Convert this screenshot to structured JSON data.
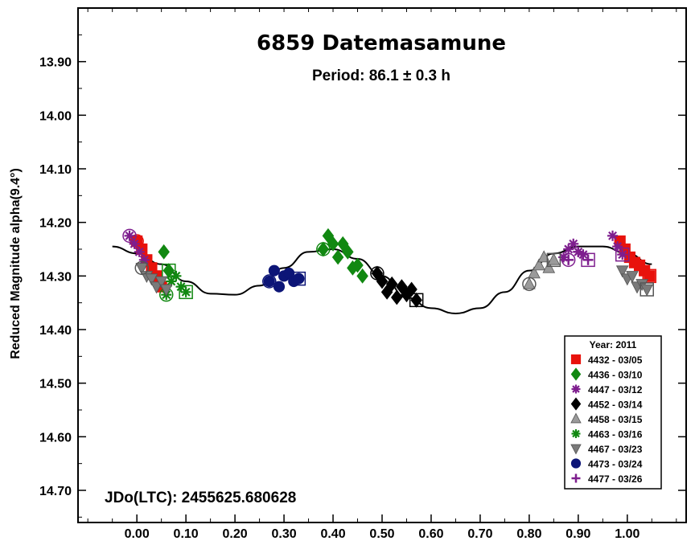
{
  "chart_data": {
    "type": "scatter",
    "title": "6859 Datemasamune",
    "subtitle": "Period: 86.1 ± 0.3 h",
    "xlabel": "",
    "ylabel": "Reduced Magnitude alpha(9.4°)",
    "annotation": "JDo(LTC): 2455625.680628",
    "xlim": [
      -0.12,
      1.12
    ],
    "ylim": [
      13.8,
      14.76
    ],
    "y_inverted": true,
    "x_ticks": [
      "0.00",
      "0.10",
      "0.20",
      "0.30",
      "0.40",
      "0.50",
      "0.60",
      "0.70",
      "0.80",
      "0.90",
      "1.00"
    ],
    "y_ticks": [
      "13.90",
      "14.00",
      "14.10",
      "14.20",
      "14.30",
      "14.40",
      "14.50",
      "14.60",
      "14.70"
    ],
    "grid": false,
    "legend_position": "bottom-right",
    "legend_title": "Year: 2011",
    "fit_curve": {
      "x": [
        -0.05,
        0.0,
        0.05,
        0.1,
        0.15,
        0.2,
        0.25,
        0.3,
        0.35,
        0.4,
        0.45,
        0.5,
        0.55,
        0.6,
        0.65,
        0.7,
        0.75,
        0.8,
        0.85,
        0.9,
        0.95,
        1.0,
        1.05
      ],
      "y": [
        14.245,
        14.258,
        14.278,
        14.31,
        14.333,
        14.335,
        14.318,
        14.285,
        14.255,
        14.25,
        14.268,
        14.3,
        14.34,
        14.36,
        14.37,
        14.36,
        14.33,
        14.29,
        14.258,
        14.245,
        14.245,
        14.258,
        14.278
      ]
    },
    "series": [
      {
        "name": "4432 - 03/05",
        "marker": "square",
        "color": "#e8120c",
        "x": [
          0.0,
          0.01,
          0.02,
          0.03,
          0.04,
          0.05,
          0.985,
          0.995,
          1.005,
          1.015,
          1.025,
          1.035,
          1.045
        ],
        "y": [
          14.235,
          14.25,
          14.27,
          14.285,
          14.3,
          14.32,
          14.235,
          14.25,
          14.265,
          14.275,
          14.28,
          14.29,
          14.3
        ]
      },
      {
        "name": "4436 - 03/10",
        "marker": "diamond",
        "color": "#118811",
        "x": [
          0.38,
          0.39,
          0.4,
          0.41,
          0.42,
          0.43,
          0.44,
          0.45,
          0.46,
          0.055,
          0.065
        ],
        "y": [
          14.25,
          14.225,
          14.24,
          14.265,
          14.24,
          14.255,
          14.285,
          14.28,
          14.3,
          14.255,
          14.29
        ]
      },
      {
        "name": "4447 - 03/12",
        "marker": "asterisk",
        "color": "#7e1e8e",
        "x": [
          -0.015,
          -0.005,
          0.005,
          0.015,
          0.87,
          0.88,
          0.89,
          0.9,
          0.91,
          0.97,
          0.98,
          0.99
        ],
        "y": [
          14.225,
          14.24,
          14.255,
          14.27,
          14.265,
          14.25,
          14.24,
          14.255,
          14.26,
          14.225,
          14.245,
          14.26
        ]
      },
      {
        "name": "4452 - 03/14",
        "marker": "diamond",
        "color": "#000000",
        "x": [
          0.49,
          0.5,
          0.51,
          0.52,
          0.53,
          0.54,
          0.55,
          0.56,
          0.57
        ],
        "y": [
          14.295,
          14.31,
          14.33,
          14.315,
          14.34,
          14.32,
          14.335,
          14.325,
          14.345
        ]
      },
      {
        "name": "4458 - 03/15",
        "marker": "triangle-up",
        "color": "#9a9a9a",
        "x": [
          0.8,
          0.81,
          0.82,
          0.83,
          0.84,
          0.85
        ],
        "y": [
          14.315,
          14.295,
          14.28,
          14.265,
          14.285,
          14.27
        ]
      },
      {
        "name": "4463 - 03/16",
        "marker": "asterisk",
        "color": "#118811",
        "x": [
          0.06,
          0.07,
          0.08,
          0.09,
          0.1
        ],
        "y": [
          14.335,
          14.31,
          14.3,
          14.32,
          14.33
        ]
      },
      {
        "name": "4467 - 03/23",
        "marker": "triangle-down",
        "color": "#7a7a7a",
        "x": [
          0.01,
          0.02,
          0.03,
          0.04,
          0.05,
          0.06,
          0.99,
          1.0,
          1.01,
          1.02,
          1.03,
          1.04
        ],
        "y": [
          14.285,
          14.3,
          14.305,
          14.32,
          14.31,
          14.325,
          14.29,
          14.305,
          14.3,
          14.32,
          14.315,
          14.325
        ]
      },
      {
        "name": "4473 - 03/24",
        "marker": "circle",
        "color": "#0c1577",
        "x": [
          0.27,
          0.28,
          0.29,
          0.3,
          0.31,
          0.32,
          0.33
        ],
        "y": [
          14.31,
          14.29,
          14.32,
          14.3,
          14.295,
          14.31,
          14.305
        ]
      },
      {
        "name": "4477 - 03/26",
        "marker": "plus",
        "color": "#7e1e8e",
        "x": [
          0.88,
          0.9,
          0.92
        ],
        "y": [
          14.27,
          14.255,
          14.27
        ]
      }
    ]
  }
}
